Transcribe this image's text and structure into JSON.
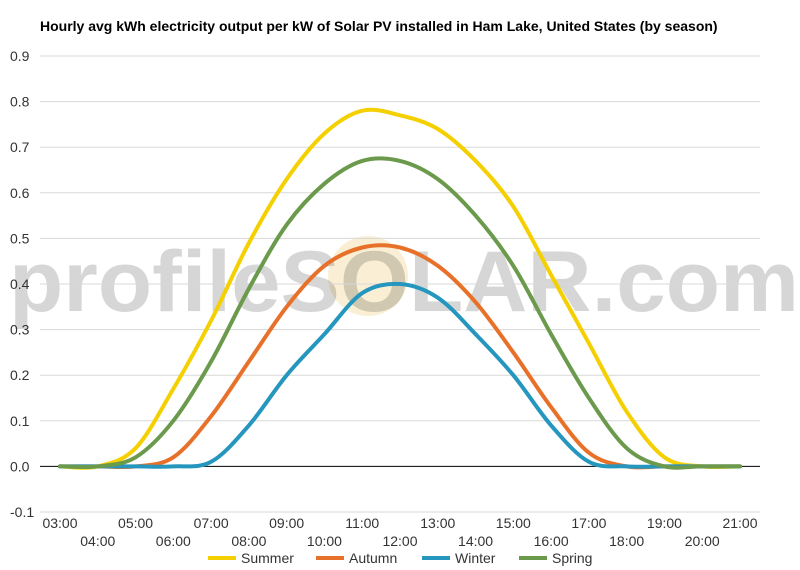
{
  "chart_data": {
    "type": "line",
    "title": "Hourly avg kWh electricity output per kW of Solar PV installed in Ham Lake, United States (by season)",
    "xlabel": "",
    "ylabel": "",
    "ylim": [
      -0.1,
      0.9
    ],
    "yticks": [
      "-0.1",
      "0.0",
      "0.1",
      "0.2",
      "0.3",
      "0.4",
      "0.5",
      "0.6",
      "0.7",
      "0.8",
      "0.9"
    ],
    "x": [
      "03:00",
      "04:00",
      "05:00",
      "06:00",
      "07:00",
      "08:00",
      "09:00",
      "10:00",
      "11:00",
      "12:00",
      "13:00",
      "14:00",
      "15:00",
      "16:00",
      "17:00",
      "18:00",
      "19:00",
      "20:00",
      "21:00"
    ],
    "grid": true,
    "legend": "bottom",
    "watermark": "profileSOLAR.com",
    "series": [
      {
        "name": "Summer",
        "color": "#f5d000",
        "values": [
          0.0,
          0.0,
          0.04,
          0.17,
          0.32,
          0.49,
          0.63,
          0.73,
          0.78,
          0.77,
          0.74,
          0.67,
          0.57,
          0.42,
          0.27,
          0.12,
          0.02,
          0.0,
          0.0
        ]
      },
      {
        "name": "Autumn",
        "color": "#e8712a",
        "values": [
          0.0,
          0.0,
          0.0,
          0.02,
          0.11,
          0.23,
          0.35,
          0.44,
          0.48,
          0.48,
          0.44,
          0.36,
          0.25,
          0.13,
          0.03,
          0.0,
          0.0,
          0.0,
          0.0
        ]
      },
      {
        "name": "Winter",
        "color": "#2596be",
        "values": [
          0.0,
          0.0,
          0.0,
          0.0,
          0.01,
          0.09,
          0.2,
          0.29,
          0.38,
          0.4,
          0.37,
          0.29,
          0.2,
          0.09,
          0.01,
          0.0,
          0.0,
          0.0,
          0.0
        ]
      },
      {
        "name": "Spring",
        "color": "#6b9a4c",
        "values": [
          0.0,
          0.0,
          0.02,
          0.1,
          0.23,
          0.39,
          0.53,
          0.62,
          0.67,
          0.67,
          0.63,
          0.55,
          0.44,
          0.29,
          0.15,
          0.04,
          0.0,
          0.0,
          0.0
        ]
      }
    ]
  }
}
